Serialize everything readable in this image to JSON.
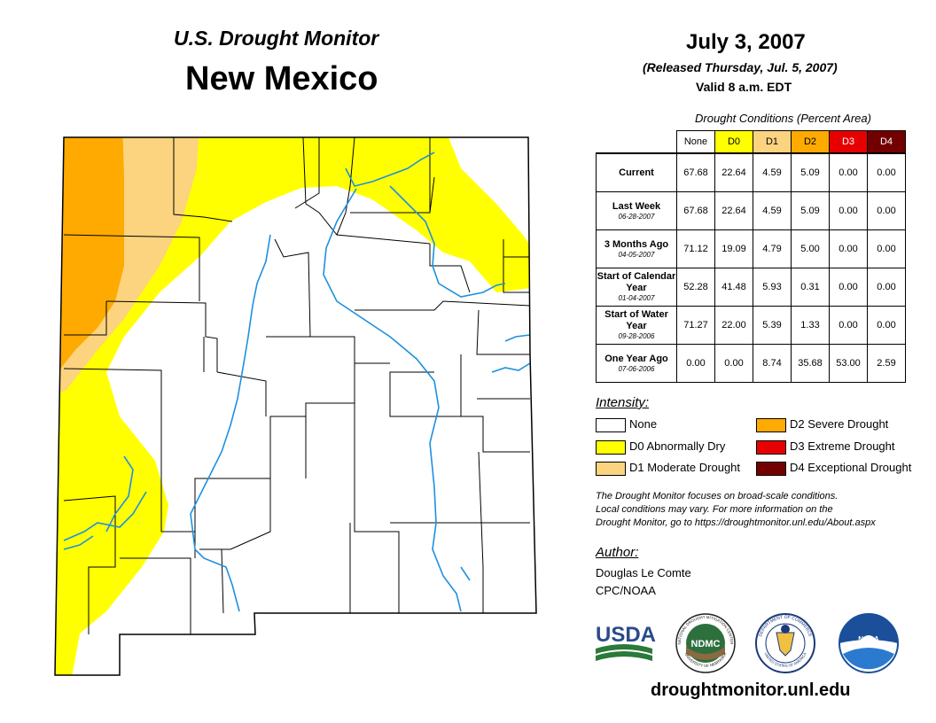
{
  "header": {
    "brand": "U.S. Drought Monitor",
    "state": "New Mexico",
    "date": "July 3, 2007",
    "released": "(Released Thursday, Jul. 5, 2007)",
    "valid": "Valid 8 a.m. EDT"
  },
  "table": {
    "title": "Drought Conditions (Percent Area)",
    "columns": [
      {
        "label": "None",
        "color": "#ffffff"
      },
      {
        "label": "D0",
        "color": "#ffff00"
      },
      {
        "label": "D1",
        "color": "#fcd37f"
      },
      {
        "label": "D2",
        "color": "#ffaa00"
      },
      {
        "label": "D3",
        "color": "#e60000"
      },
      {
        "label": "D4",
        "color": "#730000"
      }
    ],
    "rows": [
      {
        "label": "Current",
        "date": "",
        "values": [
          "67.68",
          "22.64",
          "4.59",
          "5.09",
          "0.00",
          "0.00"
        ]
      },
      {
        "label": "Last Week",
        "date": "06-28-2007",
        "values": [
          "67.68",
          "22.64",
          "4.59",
          "5.09",
          "0.00",
          "0.00"
        ]
      },
      {
        "label": "3 Months Ago",
        "date": "04-05-2007",
        "values": [
          "71.12",
          "19.09",
          "4.79",
          "5.00",
          "0.00",
          "0.00"
        ]
      },
      {
        "label": "Start of Calendar Year",
        "date": "01-04-2007",
        "values": [
          "52.28",
          "41.48",
          "5.93",
          "0.31",
          "0.00",
          "0.00"
        ]
      },
      {
        "label": "Start of Water Year",
        "date": "09-28-2006",
        "values": [
          "71.27",
          "22.00",
          "5.39",
          "1.33",
          "0.00",
          "0.00"
        ]
      },
      {
        "label": "One Year Ago",
        "date": "07-06-2006",
        "values": [
          "0.00",
          "0.00",
          "8.74",
          "35.68",
          "53.00",
          "2.59"
        ]
      }
    ]
  },
  "legend": {
    "title": "Intensity:",
    "items": [
      {
        "label": "None",
        "color": "#ffffff"
      },
      {
        "label": "D0 Abnormally Dry",
        "color": "#ffff00"
      },
      {
        "label": "D1 Moderate Drought",
        "color": "#fcd37f"
      },
      {
        "label": "D2 Severe Drought",
        "color": "#ffaa00"
      },
      {
        "label": "D3 Extreme Drought",
        "color": "#e60000"
      },
      {
        "label": "D4 Exceptional Drought",
        "color": "#730000"
      }
    ]
  },
  "note": {
    "line1": "The Drought Monitor focuses on broad-scale conditions.",
    "line2": "Local conditions may vary. For more information on the",
    "line3": "Drought Monitor, go to https://droughtmonitor.unl.edu/About.aspx"
  },
  "author": {
    "heading": "Author:",
    "name": "Douglas Le Comte",
    "org": "CPC/NOAA"
  },
  "logos": {
    "usda": "USDA",
    "ndmc": "NDMC",
    "noaa": "NOAA",
    "ndmc_ring": "NATIONAL DROUGHT MITIGATION CENTER",
    "ndmc_ring_bottom": "UNIVERSITY OF NEBRASKA",
    "commerce_ring": "DEPARTMENT OF COMMERCE",
    "commerce_ring_bottom": "UNITED STATES OF AMERICA"
  },
  "footer": {
    "url": "droughtmonitor.unl.edu"
  },
  "map": {
    "colors": {
      "none": "#ffffff",
      "d0": "#ffff00",
      "d1": "#fcd37f",
      "d2": "#ffaa00",
      "river": "#1e90e0",
      "border": "#000000"
    }
  }
}
